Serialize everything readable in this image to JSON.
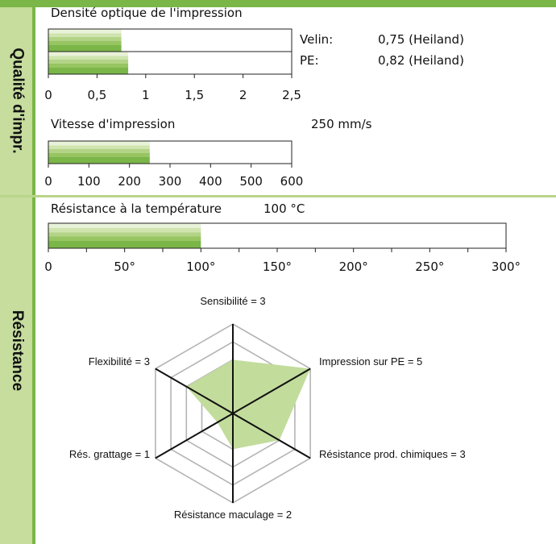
{
  "sidebar": {
    "section1_label": "Qualité d'impr.",
    "section2_label": "Résistance"
  },
  "colors": {
    "accent": "#7ab648",
    "sidebar_fill": "#c6dd9e",
    "radar_fill": "#c2dc9c"
  },
  "chart_data": [
    {
      "type": "bar",
      "title": "Densité optique de l'impression",
      "categories": [
        "Velin:",
        "PE:"
      ],
      "values": [
        0.75,
        0.82
      ],
      "value_labels": [
        "0,75 (Heiland)",
        "0,82 (Heiland)"
      ],
      "xlim": [
        0,
        2.5
      ],
      "ticks": [
        0,
        0.5,
        1,
        1.5,
        2,
        2.5
      ],
      "tick_labels": [
        "0",
        "0,5",
        "1",
        "1,5",
        "2",
        "2,5"
      ]
    },
    {
      "type": "bar",
      "title": "Vitesse d'impression",
      "values": [
        250
      ],
      "value_label": "250 mm/s",
      "xlim": [
        0,
        600
      ],
      "ticks": [
        0,
        100,
        200,
        300,
        400,
        500,
        600
      ],
      "tick_labels": [
        "0",
        "100",
        "200",
        "300",
        "400",
        "500",
        "600"
      ]
    },
    {
      "type": "bar",
      "title": "Résistance à la température",
      "values": [
        100
      ],
      "value_label": "100 °C",
      "xlim": [
        0,
        300
      ],
      "ticks": [
        0,
        50,
        100,
        150,
        200,
        250,
        300
      ],
      "tick_labels": [
        "0",
        "50°",
        "100°",
        "150°",
        "200°",
        "250°",
        "300°"
      ]
    },
    {
      "type": "radar",
      "max": 5,
      "axes": [
        {
          "name": "Sensibilité",
          "value": 3,
          "label": "Sensibilité = 3"
        },
        {
          "name": "Impression sur PE",
          "value": 5,
          "label": "Impression sur PE = 5"
        },
        {
          "name": "Résistance prod. chimiques",
          "value": 3,
          "label": "Résistance prod. chimiques = 3"
        },
        {
          "name": "Résistance maculage",
          "value": 2,
          "label": "Résistance maculage = 2"
        },
        {
          "name": "Rés. grattage",
          "value": 1,
          "label": "Rés. grattage = 1"
        },
        {
          "name": "Flexibilité",
          "value": 3,
          "label": "Flexibilité = 3"
        }
      ]
    }
  ]
}
